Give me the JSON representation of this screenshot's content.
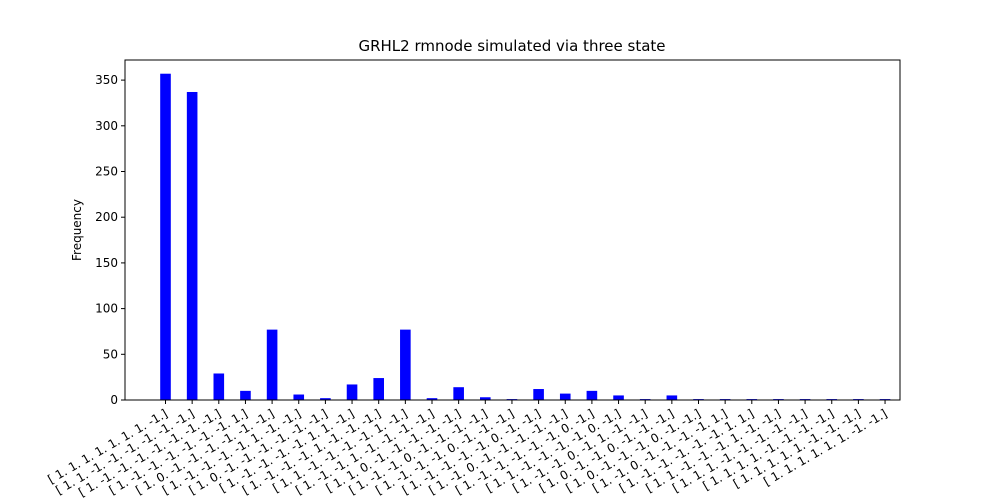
{
  "chart_data": {
    "type": "bar",
    "title": "GRHL2 rmnode simulated via three state",
    "xlabel": "",
    "ylabel": "Frequency",
    "ylim": [
      0,
      372
    ],
    "yticks": [
      0,
      50,
      100,
      150,
      200,
      250,
      300,
      350
    ],
    "grid": false,
    "bar_color": "#0000ff",
    "categories": [
      "[ 1.  1.  1.  1.  1.  1.  1. -1.]",
      "[ 1.  1. -1. -1. -1. -1. -1. -1.]",
      "[ 1. -1. -1. -1. -1. -1. -1. -1.]",
      "[ 1. -1. -1. -1. -1. -1. -1.  1.]",
      "[ 1.  0. -1. -1. -1. -1. -1. -1.]",
      "[ 1. -1. -1. -1. -1.  1. -1. -1.]",
      "[ 1.  0. -1. -1. -1. -1. -1. -1.]",
      "[ 1. -1. -1. -1. -1.  1.  1. -1.]",
      "[ 1. -1. -1. -1.  1. -1. -1. -1.]",
      "[ 1.  1. -1. -1. -1. -1.  1. -1.]",
      "[ 1. -1. -1.  1. -1. -1. -1. -1.]",
      "[ 1.  1.  0. -1. -1. -1. -1. -1.]",
      "[ 1. -1. -1.  0. -1. -1. -1. -1.]",
      "[ 1. -1. -1. -1.  0. -1. -1. -1.]",
      "[ 1. -1. -1. -1. -1.  0. -1. -1.]",
      "[ 1. -1.  0. -1. -1. -1. -1. -1.]",
      "[ 1. -1. -1. -1. -1. -1.  0. -1.]",
      "[ 1.  1. -1. -1. -1. -1.  0. -1.]",
      "[ 1. -1. -1.  0. -1.  1. -1. -1.]",
      "[ 1.  0. -1. -1.  0. -1. -1. -1.]",
      "[ 1.  0. -1. -1. -1.  0. -1. -1.]",
      "[ 1. -1.  0. -1. -1. -1. -1.  1.]",
      "[ 1. -1. -1. -1. -1. -1.  1.  1.]",
      "[ 1.  1. -1. -1. -1.  1. -1. -1.]",
      "[ 1.  1.  1. -1. -1. -1. -1. -1.]",
      "[ 1.  1.  1.  1. -1. -1. -1. -1.]",
      "[ 1.  1.  1.  1.  1. -1. -1. -1.]",
      "[ 1.  1.  1.  1.  1.  1. -1. -1.]"
    ],
    "values": [
      357,
      337,
      29,
      10,
      77,
      6,
      2,
      17,
      24,
      77,
      2,
      14,
      3,
      1,
      12,
      7,
      10,
      5,
      1,
      5,
      1,
      1,
      1,
      1,
      1,
      1,
      1,
      1
    ]
  }
}
